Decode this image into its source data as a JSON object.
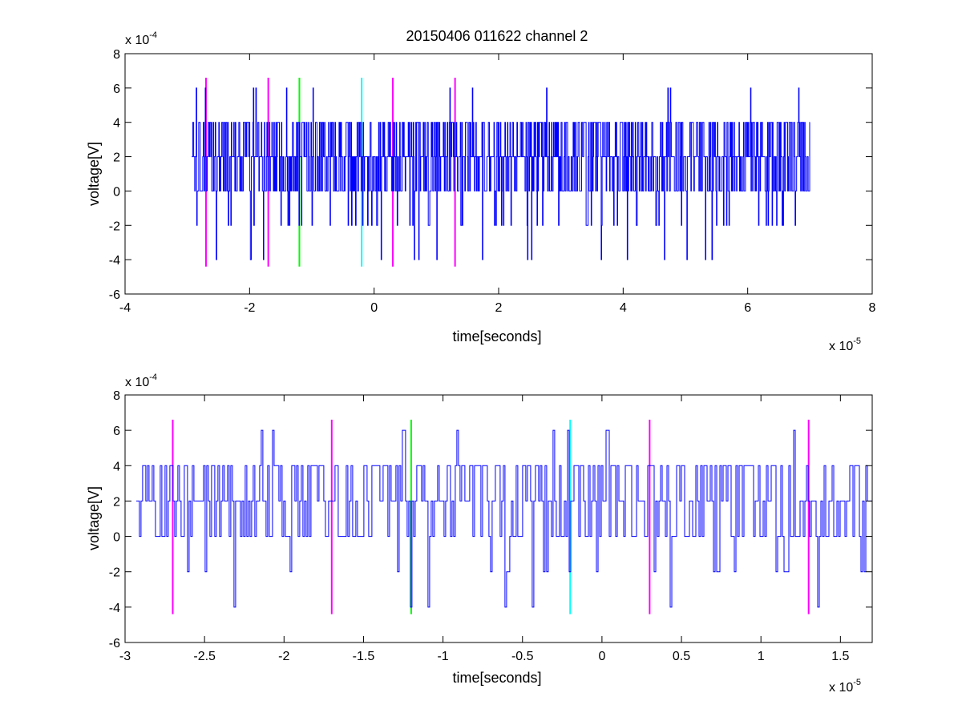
{
  "figure": {
    "title": "20150406 011622 channel 2"
  },
  "colors": {
    "signal": "#0000ff",
    "marker_magenta": "#ff00ff",
    "marker_green": "#00ff00",
    "marker_cyan": "#00ffff",
    "axes": "#000000"
  },
  "chart_data": [
    {
      "type": "line",
      "title": "20150406 011622 channel 2",
      "xlabel": "time[seconds]",
      "ylabel": "voltage[V]",
      "x_exponent_base": "x 10",
      "x_exponent": "-5",
      "y_exponent_base": "x 10",
      "y_exponent": "-4",
      "xlim": [
        -4,
        8
      ],
      "ylim": [
        -6,
        8
      ],
      "xticks": [
        -4,
        -2,
        0,
        2,
        4,
        6,
        8
      ],
      "xtick_labels": [
        "-4",
        "-2",
        "0",
        "2",
        "4",
        "6",
        "8"
      ],
      "yticks": [
        -6,
        -4,
        -2,
        0,
        2,
        4,
        6,
        8
      ],
      "ytick_labels": [
        "-6",
        "-4",
        "-2",
        "0",
        "2",
        "4",
        "6",
        "8"
      ],
      "grid": false,
      "signal": {
        "x_start": -2.93,
        "x_end": 7.0,
        "levels": [
          -4,
          -2,
          0,
          2,
          4,
          6
        ],
        "baseline": 2,
        "seed": 7
      },
      "markers": [
        {
          "x": -2.7,
          "y_from": -4.4,
          "y_to": 6.6,
          "color": "magenta"
        },
        {
          "x": -1.7,
          "y_from": -4.4,
          "y_to": 6.6,
          "color": "magenta"
        },
        {
          "x": -1.2,
          "y_from": -4.4,
          "y_to": 6.6,
          "color": "green"
        },
        {
          "x": -0.2,
          "y_from": -4.4,
          "y_to": 6.6,
          "color": "cyan"
        },
        {
          "x": 0.3,
          "y_from": -4.4,
          "y_to": 6.6,
          "color": "magenta"
        },
        {
          "x": 1.3,
          "y_from": -4.4,
          "y_to": 6.6,
          "color": "magenta"
        }
      ]
    },
    {
      "type": "line",
      "xlabel": "time[seconds]",
      "ylabel": "voltage[V]",
      "x_exponent_base": "x 10",
      "x_exponent": "-5",
      "y_exponent_base": "x 10",
      "y_exponent": "-4",
      "xlim": [
        -3.0,
        1.7
      ],
      "ylim": [
        -6,
        8
      ],
      "xticks": [
        -3,
        -2.5,
        -2,
        -1.5,
        -1,
        -0.5,
        0,
        0.5,
        1,
        1.5
      ],
      "xtick_labels": [
        "-3",
        "-2.5",
        "-2",
        "-1.5",
        "-1",
        "-0.5",
        "0",
        "0.5",
        "1",
        "1.5"
      ],
      "yticks": [
        -6,
        -4,
        -2,
        0,
        2,
        4,
        6,
        8
      ],
      "ytick_labels": [
        "-6",
        "-4",
        "-2",
        "0",
        "2",
        "4",
        "6",
        "8"
      ],
      "grid": false,
      "signal": {
        "x_start": -2.93,
        "x_end": 1.7,
        "levels": [
          -4,
          -2,
          0,
          2,
          4,
          6
        ],
        "baseline": 2,
        "seed": 11
      },
      "markers": [
        {
          "x": -2.7,
          "y_from": -4.4,
          "y_to": 6.6,
          "color": "magenta"
        },
        {
          "x": -1.7,
          "y_from": -4.4,
          "y_to": 6.6,
          "color": "magenta"
        },
        {
          "x": -1.2,
          "y_from": -4.4,
          "y_to": 6.6,
          "color": "green"
        },
        {
          "x": -0.2,
          "y_from": -4.4,
          "y_to": 6.6,
          "color": "cyan"
        },
        {
          "x": 0.3,
          "y_from": -4.4,
          "y_to": 6.6,
          "color": "magenta"
        },
        {
          "x": 1.3,
          "y_from": -4.4,
          "y_to": 6.6,
          "color": "magenta"
        }
      ]
    }
  ]
}
